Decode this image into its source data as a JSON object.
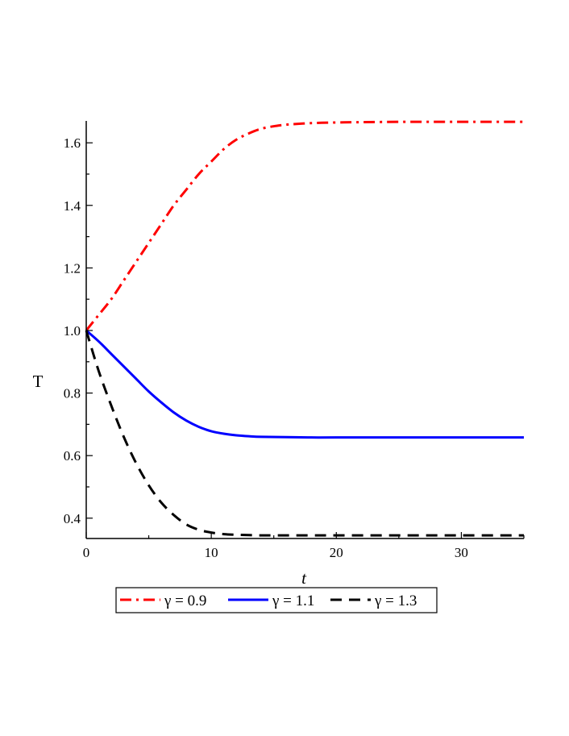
{
  "chart_data": {
    "type": "line",
    "title": "",
    "xlabel": "t",
    "ylabel": "T",
    "xlim": [
      0,
      35
    ],
    "ylim": [
      0.335,
      1.67
    ],
    "x_ticks": [
      0,
      10,
      20,
      30
    ],
    "x_tick_labels": [
      "0",
      "10",
      "20",
      "30"
    ],
    "y_ticks": [
      0.4,
      0.6,
      0.8,
      1.0,
      1.2,
      1.4,
      1.6
    ],
    "y_tick_labels": [
      "0.4",
      "0.6",
      "0.8",
      "1.0",
      "1.2",
      "1.4",
      "1.6"
    ],
    "grid": false,
    "legend_position": "bottom",
    "series": [
      {
        "name": "γ = 0.9",
        "color": "#ff0000",
        "line_style": "dash-dot",
        "x": [
          0,
          1,
          2,
          3,
          4,
          5,
          6,
          7,
          8,
          9,
          10,
          11,
          12,
          13,
          14,
          15,
          16,
          18,
          20,
          22,
          25,
          28,
          31,
          35
        ],
        "y": [
          1.0,
          1.05,
          1.1,
          1.16,
          1.22,
          1.28,
          1.34,
          1.4,
          1.45,
          1.5,
          1.54,
          1.58,
          1.61,
          1.63,
          1.645,
          1.653,
          1.658,
          1.663,
          1.665,
          1.666,
          1.667,
          1.667,
          1.667,
          1.667
        ]
      },
      {
        "name": "γ = 1.1",
        "color": "#0000ff",
        "line_style": "solid",
        "x": [
          0,
          1,
          2,
          3,
          4,
          5,
          6,
          7,
          8,
          9,
          10,
          11,
          12,
          13,
          14,
          16,
          18,
          20,
          25,
          30,
          35
        ],
        "y": [
          1.0,
          0.965,
          0.925,
          0.885,
          0.845,
          0.805,
          0.77,
          0.738,
          0.712,
          0.692,
          0.678,
          0.67,
          0.665,
          0.662,
          0.66,
          0.659,
          0.658,
          0.658,
          0.658,
          0.658,
          0.658
        ]
      },
      {
        "name": "γ = 1.3",
        "color": "#000000",
        "line_style": "dash",
        "x": [
          0,
          1,
          2,
          3,
          4,
          5,
          6,
          7,
          8,
          9,
          10,
          11,
          12,
          13,
          14,
          16,
          18,
          20,
          25,
          30,
          35
        ],
        "y": [
          1.0,
          0.87,
          0.76,
          0.66,
          0.575,
          0.505,
          0.45,
          0.41,
          0.38,
          0.363,
          0.354,
          0.349,
          0.347,
          0.346,
          0.345,
          0.345,
          0.345,
          0.345,
          0.345,
          0.345,
          0.345
        ]
      }
    ]
  }
}
